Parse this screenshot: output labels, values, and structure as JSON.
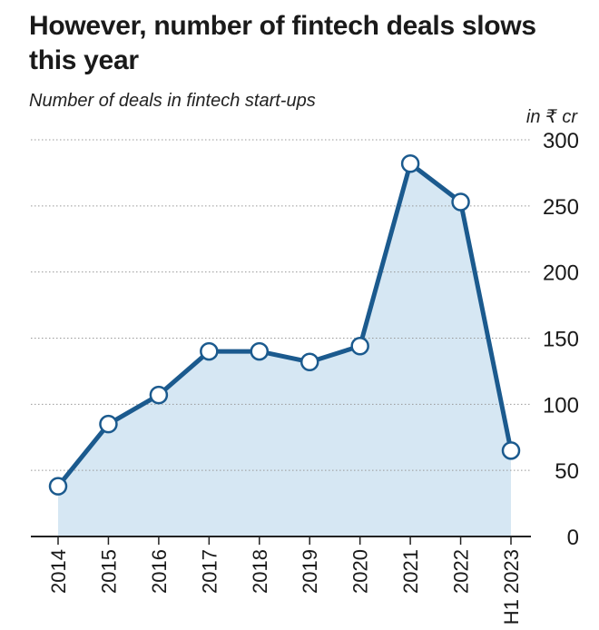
{
  "title": "However, number of fintech deals slows this year",
  "subtitle": "Number of deals in fintech start-ups",
  "unit_label": "in ₹ cr",
  "colors": {
    "line": "#1b5a8e",
    "area": "#d6e7f3",
    "grid": "#999999",
    "text": "#1a1a1a"
  },
  "chart_data": {
    "type": "area",
    "categories": [
      "2014",
      "2015",
      "2016",
      "2017",
      "2018",
      "2019",
      "2020",
      "2021",
      "2022",
      "H1 2023"
    ],
    "values": [
      38,
      85,
      107,
      140,
      140,
      132,
      144,
      282,
      253,
      65
    ],
    "ylim": [
      0,
      300
    ],
    "yticks": [
      "300",
      "250",
      "200",
      "150",
      "100",
      "50",
      "0"
    ],
    "ytick_values": [
      300,
      250,
      200,
      150,
      100,
      50,
      0
    ],
    "grid": "horizontal-dotted",
    "y_axis_side": "right"
  }
}
